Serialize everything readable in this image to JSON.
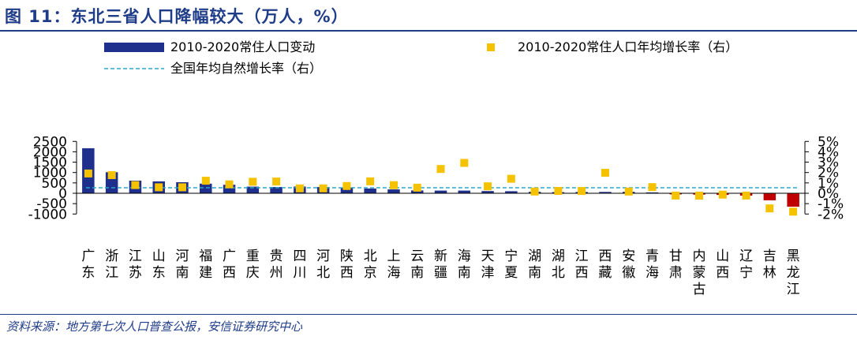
{
  "title": "图 11：东北三省人口降幅较大（万人，%）",
  "source": "资料来源：地方第七次人口普查公报，安信证券研究中心",
  "colors": {
    "bar_positive": "#1f2f8c",
    "bar_negative": "#c00000",
    "marker": "#f5c200",
    "national_line": "#2aa6c8",
    "title": "#1f3c88"
  },
  "chart_data": {
    "type": "bar",
    "categories": [
      "广东",
      "浙江",
      "江苏",
      "山东",
      "河南",
      "福建",
      "广西",
      "重庆",
      "贵州",
      "四川",
      "河北",
      "陕西",
      "北京",
      "上海",
      "云南",
      "新疆",
      "海南",
      "天津",
      "宁夏",
      "湖南",
      "湖北",
      "江西",
      "西藏",
      "安徽",
      "青海",
      "甘肃",
      "内蒙古",
      "山西",
      "辽宁",
      "吉林",
      "黑龙江"
    ],
    "series": [
      {
        "name": "2010-2020常住人口变动",
        "axis": "left",
        "kind": "bar",
        "values": [
          2170,
          1014,
          609,
          573,
          534,
          465,
          410,
          321,
          299,
          325,
          299,
          279,
          228,
          185,
          137,
          130,
          128,
          107,
          99,
          68,
          52,
          61,
          64,
          68,
          41,
          -55,
          -66,
          -79,
          -115,
          -338,
          -646
        ]
      },
      {
        "name": "2010-2020常住人口年均增长率（右）",
        "axis": "right",
        "kind": "marker",
        "values": [
          1.91,
          1.75,
          0.79,
          0.58,
          0.58,
          1.21,
          0.86,
          1.11,
          1.13,
          0.47,
          0.47,
          0.7,
          1.15,
          0.78,
          0.54,
          2.34,
          2.93,
          0.67,
          1.4,
          0.17,
          0.23,
          0.22,
          1.98,
          0.17,
          0.59,
          -0.22,
          -0.23,
          -0.13,
          -0.22,
          -1.46,
          -1.77
        ]
      },
      {
        "name": "全国年均自然增长率（右）",
        "axis": "right",
        "kind": "line",
        "value": 0.53
      }
    ],
    "left_axis": {
      "min": -1000,
      "max": 2500,
      "ticks": [
        -1000,
        -500,
        0,
        500,
        1000,
        1500,
        2000,
        2500
      ]
    },
    "right_axis": {
      "min": -2,
      "max": 5,
      "ticks": [
        -2,
        -1,
        0,
        1,
        2,
        3,
        4,
        5
      ],
      "tick_labels": [
        "-2%",
        "-1%",
        "0%",
        "1%",
        "2%",
        "3%",
        "4%",
        "5%"
      ]
    },
    "grid": false,
    "legend_placement": "top"
  }
}
